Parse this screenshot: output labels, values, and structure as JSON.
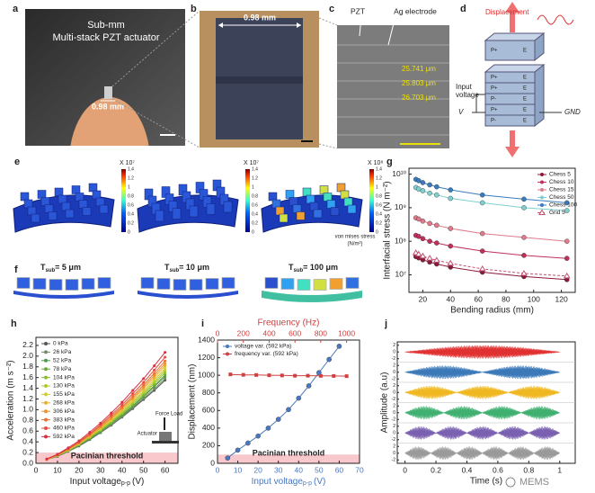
{
  "panel_labels": [
    "a",
    "b",
    "c",
    "d",
    "e",
    "f",
    "g",
    "h",
    "i",
    "j"
  ],
  "a": {
    "title_1": "Sub-mm",
    "title_2": "Multi-stack PZT actuator",
    "scale": "0.98 mm"
  },
  "b": {
    "scale": "0.98 mm"
  },
  "c": {
    "label_1": "PZT",
    "label_2": "Ag electrode",
    "measures": [
      "25.741 μm",
      "25.803 μm",
      "26.703 μm"
    ]
  },
  "d": {
    "displacement": "Displacement",
    "input_1": "Input",
    "input_2": "voltage",
    "v": "V",
    "gnd": "GND",
    "top_layer": "P+",
    "layers": [
      "P+",
      "P+",
      "P-",
      "P+",
      "P-"
    ],
    "electrode": "E"
  },
  "e": {
    "colorbars": [
      {
        "title": "X 10⁷",
        "ticks": [
          0,
          0.2,
          0.4,
          0.6,
          0.8,
          1,
          1.2,
          1.4
        ]
      },
      {
        "title": "X 10⁷",
        "ticks": [
          0,
          0.2,
          0.4,
          0.6,
          0.8,
          1,
          1.2,
          1.4
        ]
      },
      {
        "title": "X 10⁸",
        "ticks": [
          0,
          0.2,
          0.4,
          0.6,
          0.8,
          1,
          1.2,
          1.4
        ]
      }
    ],
    "unit_1": "von mises stress",
    "unit_2": "(N/m²)"
  },
  "f": {
    "labels": [
      {
        "main": "T",
        "sub": "sub",
        "rest": "= 5 μm"
      },
      {
        "main": "T",
        "sub": "sub",
        "rest": "= 10 μm"
      },
      {
        "main": "T",
        "sub": "sub",
        "rest": "= 100 μm"
      }
    ]
  },
  "chart_data": [
    {
      "type": "line",
      "log_y": true,
      "ylabel": "Interfacial stress (N m⁻²)",
      "xlabel": "Bending radius (mm)",
      "xlim": [
        10,
        130
      ],
      "xticks": [
        20,
        40,
        60,
        80,
        100,
        120
      ],
      "ylim": [
        3000000,
        15000000000
      ],
      "yticks": [
        {
          "value": 10000000,
          "label": "10⁷"
        },
        {
          "value": 100000000,
          "label": "10⁸"
        },
        {
          "value": 1000000000,
          "label": "10⁹"
        },
        {
          "value": 10000000000,
          "label": "10¹⁰"
        }
      ],
      "legend": "upper right",
      "x": [
        15,
        17,
        20,
        25,
        30,
        40,
        63,
        93,
        124
      ],
      "series": [
        {
          "name": "Chess 5",
          "color": "#8b1a3a",
          "marker": "circle",
          "values": [
            35000000,
            32000000,
            28000000,
            24000000,
            21000000,
            17000000,
            12000000,
            8900000,
            7200000
          ]
        },
        {
          "name": "Chess 10",
          "color": "#c0305a",
          "marker": "circle",
          "values": [
            150000000,
            140000000,
            120000000,
            100000000,
            89000000,
            72000000,
            51000000,
            38000000,
            31000000
          ]
        },
        {
          "name": "Chess 15",
          "color": "#e07a8a",
          "marker": "circle",
          "values": [
            500000000,
            460000000,
            400000000,
            340000000,
            300000000,
            240000000,
            170000000,
            130000000,
            100000000
          ]
        },
        {
          "name": "Chess 50",
          "color": "#7fcfcf",
          "marker": "circle",
          "values": [
            4000000000,
            3600000000,
            3200000000,
            2700000000,
            2400000000,
            1900000000,
            1400000000,
            1000000000,
            820000000
          ]
        },
        {
          "name": "Chess 100",
          "color": "#3a7bbf",
          "marker": "circle",
          "values": [
            7000000000,
            6400000000,
            5600000000,
            4800000000,
            4200000000,
            3400000000,
            2400000000,
            1800000000,
            1400000000
          ]
        },
        {
          "name": "Grid 5",
          "color": "#c05070",
          "marker": "triangle-open",
          "dash": "3 2",
          "values": [
            45000000,
            41000000,
            36000000,
            31000000,
            27000000,
            22000000,
            15000000,
            11000000,
            9200000
          ]
        }
      ]
    },
    {
      "type": "line",
      "ylabel": "Acceleration (m s⁻²)",
      "xlabel": "Input voltage",
      "xlabel_sub": "p-p",
      "xlabel_unit": "(V)",
      "xlim": [
        0,
        66
      ],
      "xticks": [
        0,
        10,
        20,
        30,
        40,
        50,
        60
      ],
      "ylim": [
        0,
        2.35
      ],
      "yticks": [
        {
          "value": 0,
          "label": "0.0"
        },
        0.2,
        0.4,
        0.6,
        0.8,
        {
          "value": 1,
          "label": "1.0"
        },
        1.2,
        1.4,
        1.6,
        1.8,
        {
          "value": 2,
          "label": "2.0"
        },
        2.2
      ],
      "legend": "upper left",
      "threshold": {
        "label": "Pacinian threshold",
        "range": [
          0,
          0.2
        ],
        "color": "#f8c8cc"
      },
      "inset": {
        "force": "Force Load",
        "actuator": "Actuator"
      },
      "x": [
        5,
        10,
        15,
        20,
        25,
        30,
        35,
        40,
        45,
        50,
        55,
        60
      ],
      "series": [
        {
          "name": "0 kPa",
          "color": "#555555",
          "values": [
            0.07,
            0.13,
            0.22,
            0.32,
            0.44,
            0.57,
            0.71,
            0.86,
            1.02,
            1.19,
            1.36,
            1.55
          ]
        },
        {
          "name": "26 kPa",
          "color": "#7a8a6a",
          "values": [
            0.07,
            0.14,
            0.22,
            0.33,
            0.45,
            0.58,
            0.72,
            0.87,
            1.04,
            1.21,
            1.39,
            1.58
          ]
        },
        {
          "name": "52 kPa",
          "color": "#4c9a4c",
          "values": [
            0.07,
            0.14,
            0.23,
            0.34,
            0.46,
            0.59,
            0.74,
            0.89,
            1.06,
            1.24,
            1.43,
            1.62
          ]
        },
        {
          "name": "78 kPa",
          "color": "#6aaa3a",
          "values": [
            0.07,
            0.14,
            0.23,
            0.34,
            0.47,
            0.6,
            0.75,
            0.91,
            1.08,
            1.26,
            1.45,
            1.65
          ]
        },
        {
          "name": "104 kPa",
          "color": "#8cbc30",
          "values": [
            0.07,
            0.14,
            0.24,
            0.35,
            0.48,
            0.62,
            0.77,
            0.93,
            1.11,
            1.29,
            1.49,
            1.69
          ]
        },
        {
          "name": "130 kPa",
          "color": "#b0c830",
          "values": [
            0.07,
            0.15,
            0.24,
            0.36,
            0.49,
            0.63,
            0.79,
            0.95,
            1.14,
            1.32,
            1.52,
            1.73
          ]
        },
        {
          "name": "155 kPa",
          "color": "#d4cc30",
          "values": [
            0.07,
            0.15,
            0.25,
            0.36,
            0.5,
            0.65,
            0.8,
            0.98,
            1.16,
            1.35,
            1.56,
            1.77
          ]
        },
        {
          "name": "268 kPa",
          "color": "#e8b030",
          "values": [
            0.07,
            0.15,
            0.25,
            0.37,
            0.51,
            0.66,
            0.83,
            1,
            1.19,
            1.39,
            1.6,
            1.82
          ]
        },
        {
          "name": "306 kPa",
          "color": "#ec9030",
          "values": [
            0.07,
            0.15,
            0.26,
            0.38,
            0.52,
            0.68,
            0.84,
            1.03,
            1.22,
            1.42,
            1.64,
            1.86
          ]
        },
        {
          "name": "383 kPa",
          "color": "#e87030",
          "values": [
            0.08,
            0.16,
            0.27,
            0.39,
            0.54,
            0.7,
            0.87,
            1.05,
            1.25,
            1.46,
            1.68,
            1.91
          ]
        },
        {
          "name": "460 kPa",
          "color": "#e05040",
          "values": [
            0.08,
            0.16,
            0.27,
            0.4,
            0.55,
            0.72,
            0.9,
            1.09,
            1.3,
            1.51,
            1.74,
            1.98
          ]
        },
        {
          "name": "592 kPa",
          "color": "#d83040",
          "values": [
            0.08,
            0.17,
            0.29,
            0.42,
            0.58,
            0.75,
            0.94,
            1.14,
            1.36,
            1.58,
            1.82,
            2.07
          ]
        }
      ]
    },
    {
      "type": "line",
      "ylabel": "Displacement (nm)",
      "xlabel": "Input voltage",
      "xlabel_sub": "p-p",
      "xlabel_unit": "(V)",
      "x_color": "#4a78c0",
      "x2label": "Frequency (Hz)",
      "x2_color": "#d04040",
      "xlim": [
        0,
        70
      ],
      "xticks": [
        0,
        10,
        20,
        30,
        40,
        50,
        60,
        70
      ],
      "x2lim": [
        0,
        1100
      ],
      "x2ticks": [
        0,
        200,
        400,
        600,
        800,
        1000
      ],
      "ylim": [
        0,
        1400
      ],
      "yticks": [
        0,
        200,
        400,
        600,
        800,
        1000,
        1200,
        1400
      ],
      "legend": "upper left",
      "threshold": {
        "label": "Pacinian threshold",
        "range": [
          0,
          100
        ],
        "color": "#f8c8cc"
      },
      "series": [
        {
          "name": "voltage var. (592 kPa)",
          "color": "#4a78c0",
          "marker": "circle",
          "x": [
            5,
            10,
            15,
            20,
            25,
            30,
            35,
            40,
            45,
            50,
            55,
            60
          ],
          "values": [
            60,
            150,
            230,
            310,
            400,
            500,
            610,
            740,
            880,
            1030,
            1180,
            1330
          ]
        },
        {
          "name": "frequency var. (592 kPa)",
          "color": "#d04040",
          "marker": "square",
          "axis": "x2",
          "x": [
            100,
            200,
            300,
            400,
            500,
            600,
            700,
            800,
            900,
            1000
          ],
          "values": [
            1010,
            1005,
            1003,
            1000,
            998,
            995,
            995,
            993,
            992,
            990
          ]
        }
      ]
    },
    {
      "type": "waveform",
      "ylabel": "Amplitude (a.u)",
      "xlabel": "Time (s)",
      "xlim": [
        -0.05,
        1.1
      ],
      "xticks": [
        0,
        0.2,
        0.4,
        0.6,
        0.8,
        1
      ],
      "row_ylim": [
        -3,
        3
      ],
      "row_yticks": [
        2,
        0,
        -2
      ],
      "duration": 1,
      "rows": [
        {
          "color": "#e03030",
          "lobes": 1,
          "amplitude": 2
        },
        {
          "color": "#3a78b8",
          "lobes": 2,
          "amplitude": 2
        },
        {
          "color": "#f0b820",
          "lobes": 3,
          "amplitude": 2
        },
        {
          "color": "#40b070",
          "lobes": 4,
          "amplitude": 2
        },
        {
          "color": "#7a60b0",
          "lobes": 5,
          "amplitude": 2
        },
        {
          "color": "#9a9a9a",
          "lobes": 6,
          "amplitude": 2
        }
      ]
    }
  ],
  "watermark": "MEMS"
}
